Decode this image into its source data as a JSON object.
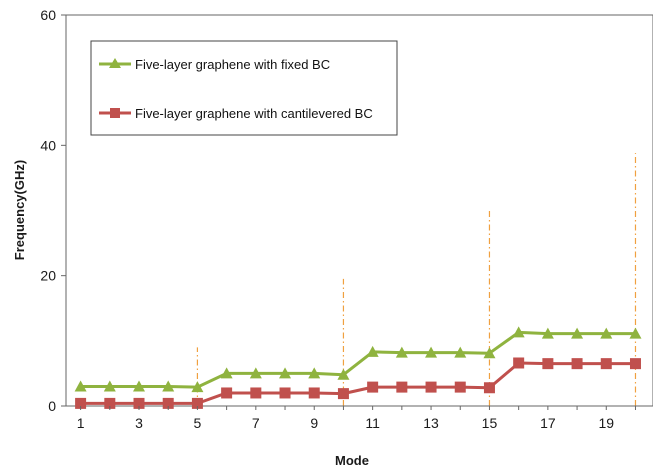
{
  "chart_data": {
    "type": "line",
    "title": "",
    "xlabel": "Mode",
    "ylabel": "Frequency(GHz)",
    "x": [
      1,
      2,
      3,
      4,
      5,
      6,
      7,
      8,
      9,
      10,
      11,
      12,
      13,
      14,
      15,
      16,
      17,
      18,
      19,
      20
    ],
    "xticks": [
      1,
      3,
      5,
      7,
      9,
      11,
      13,
      15,
      17,
      19
    ],
    "xlim": [
      0.5,
      20.6
    ],
    "yticks": [
      0,
      20,
      40,
      60
    ],
    "ylim": [
      0,
      60
    ],
    "grid": false,
    "legend_position": "top-left",
    "series": [
      {
        "name": "Five-layer graphene with fixed BC",
        "color": "#8fb33f",
        "marker": "triangle",
        "values": [
          3.0,
          3.0,
          3.0,
          3.0,
          2.9,
          5.0,
          5.0,
          5.0,
          5.0,
          4.8,
          8.3,
          8.2,
          8.2,
          8.2,
          8.1,
          11.3,
          11.1,
          11.1,
          11.1,
          11.1
        ]
      },
      {
        "name": "Five-layer graphene with cantilevered BC",
        "color": "#c0504d",
        "marker": "square",
        "values": [
          0.4,
          0.4,
          0.4,
          0.4,
          0.4,
          2.0,
          2.0,
          2.0,
          2.0,
          1.9,
          2.9,
          2.9,
          2.9,
          2.9,
          2.8,
          6.6,
          6.5,
          6.5,
          6.5,
          6.5
        ]
      }
    ],
    "annotations": [
      {
        "type": "vertical-dash-dot-line",
        "color": "#f0a040",
        "x": 5,
        "y_top": 9.0
      },
      {
        "type": "vertical-dash-dot-line",
        "color": "#f0a040",
        "x": 10,
        "y_top": 19.5
      },
      {
        "type": "vertical-dash-dot-line",
        "color": "#f0a040",
        "x": 15,
        "y_top": 30.0
      },
      {
        "type": "vertical-dash-dot-line",
        "color": "#f0a040",
        "x": 20,
        "y_top": 38.8
      }
    ]
  }
}
